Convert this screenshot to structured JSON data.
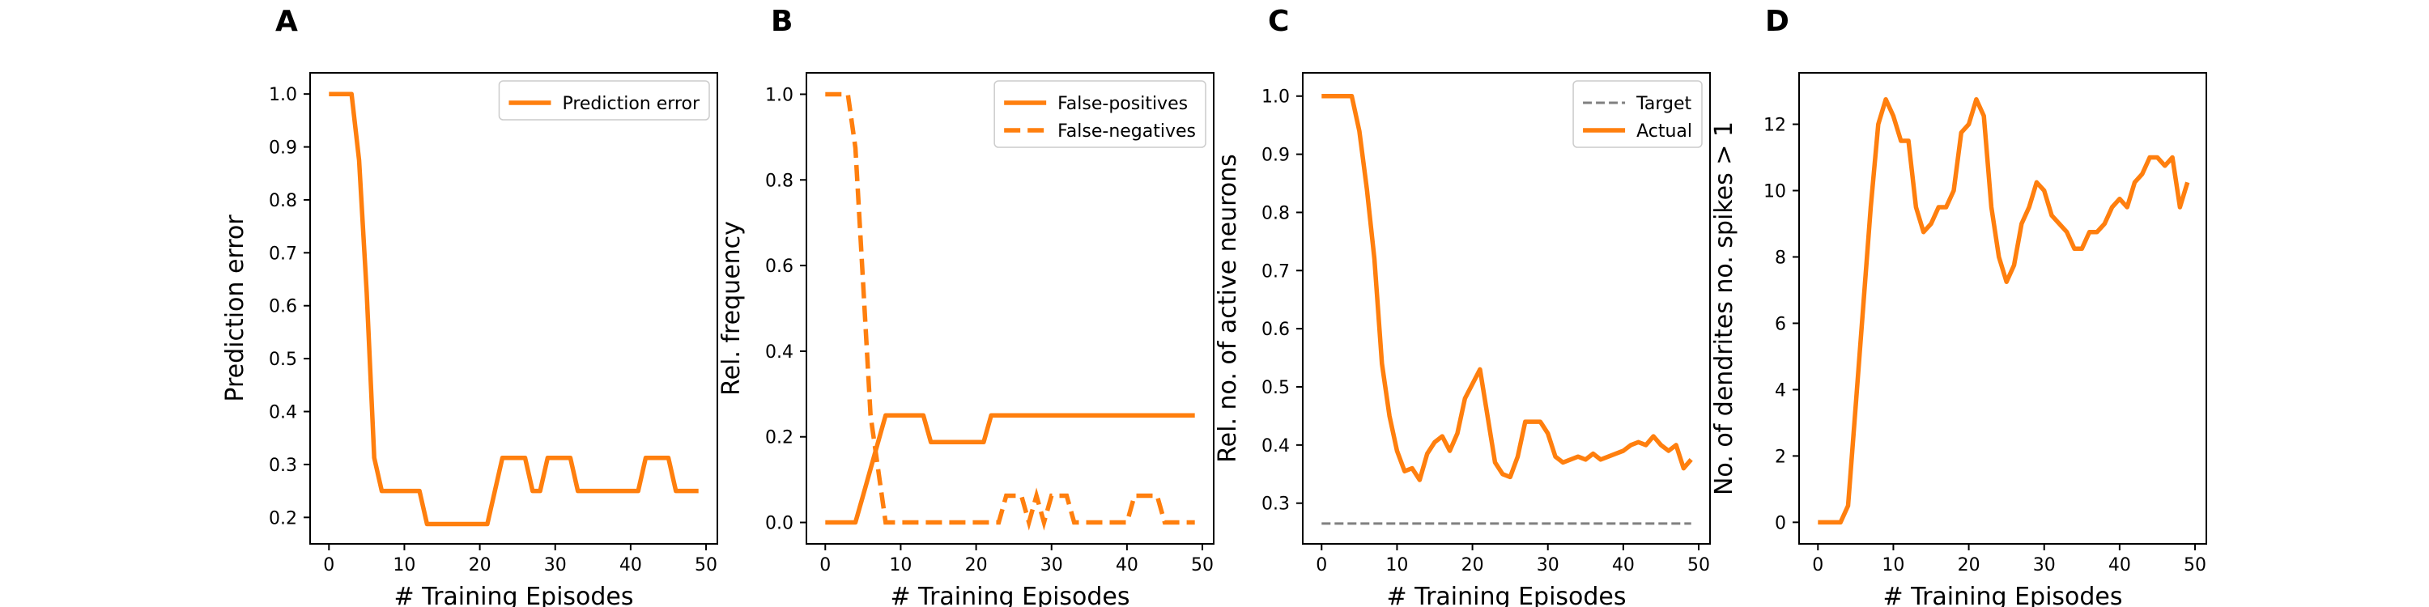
{
  "colors": {
    "orange": "#ff7f0e",
    "gray": "#808080"
  },
  "chart_data": [
    {
      "type": "line",
      "panel_label": "A",
      "xlabel": "# Training Episodes",
      "ylabel": "Prediction error",
      "xlim": [
        -2.5,
        51.5
      ],
      "ylim": [
        0.15,
        1.04
      ],
      "xticks": [
        0,
        10,
        20,
        30,
        40,
        50
      ],
      "yticks": [
        0.2,
        0.3,
        0.4,
        0.5,
        0.6,
        0.7,
        0.8,
        0.9,
        1.0
      ],
      "tick_decimals": 1,
      "legend": {
        "loc": "upper right",
        "entries": [
          {
            "name": "Prediction error",
            "style": "solid",
            "color": "#ff7f0e"
          }
        ]
      },
      "series": [
        {
          "name": "Prediction error",
          "style": "solid",
          "color": "#ff7f0e",
          "x": [
            0,
            1,
            2,
            3,
            4,
            5,
            6,
            7,
            8,
            9,
            10,
            11,
            12,
            13,
            14,
            15,
            16,
            17,
            18,
            19,
            20,
            21,
            22,
            23,
            24,
            25,
            26,
            27,
            28,
            29,
            30,
            31,
            32,
            33,
            34,
            35,
            36,
            37,
            38,
            39,
            40,
            41,
            42,
            43,
            44,
            45,
            46,
            47,
            48,
            49
          ],
          "y": [
            1.0,
            1.0,
            1.0,
            1.0,
            0.875,
            0.625,
            0.3125,
            0.25,
            0.25,
            0.25,
            0.25,
            0.25,
            0.25,
            0.1875,
            0.1875,
            0.1875,
            0.1875,
            0.1875,
            0.1875,
            0.1875,
            0.1875,
            0.1875,
            0.25,
            0.3125,
            0.3125,
            0.3125,
            0.3125,
            0.25,
            0.25,
            0.3125,
            0.3125,
            0.3125,
            0.3125,
            0.25,
            0.25,
            0.25,
            0.25,
            0.25,
            0.25,
            0.25,
            0.25,
            0.25,
            0.3125,
            0.3125,
            0.3125,
            0.3125,
            0.25,
            0.25,
            0.25,
            0.25
          ]
        }
      ]
    },
    {
      "type": "line",
      "panel_label": "B",
      "xlabel": "# Training Episodes",
      "ylabel": "Rel. frequency",
      "xlim": [
        -2.5,
        51.5
      ],
      "ylim": [
        -0.05,
        1.05
      ],
      "xticks": [
        0,
        10,
        20,
        30,
        40,
        50
      ],
      "yticks": [
        0.0,
        0.2,
        0.4,
        0.6,
        0.8,
        1.0
      ],
      "tick_decimals": 1,
      "legend": {
        "loc": "upper right",
        "entries": [
          {
            "name": "False-positives",
            "style": "solid",
            "color": "#ff7f0e"
          },
          {
            "name": "False-negatives",
            "style": "dashed",
            "color": "#ff7f0e"
          }
        ]
      },
      "series": [
        {
          "name": "False-positives",
          "style": "solid",
          "color": "#ff7f0e",
          "x": [
            0,
            1,
            2,
            3,
            4,
            5,
            6,
            7,
            8,
            9,
            10,
            11,
            12,
            13,
            14,
            15,
            16,
            17,
            18,
            19,
            20,
            21,
            22,
            23,
            24,
            25,
            26,
            27,
            28,
            29,
            30,
            31,
            32,
            33,
            34,
            35,
            36,
            37,
            38,
            39,
            40,
            41,
            42,
            43,
            44,
            45,
            46,
            47,
            48,
            49
          ],
          "y": [
            0,
            0,
            0,
            0,
            0,
            0.0625,
            0.125,
            0.1875,
            0.25,
            0.25,
            0.25,
            0.25,
            0.25,
            0.25,
            0.1875,
            0.1875,
            0.1875,
            0.1875,
            0.1875,
            0.1875,
            0.1875,
            0.1875,
            0.25,
            0.25,
            0.25,
            0.25,
            0.25,
            0.25,
            0.25,
            0.25,
            0.25,
            0.25,
            0.25,
            0.25,
            0.25,
            0.25,
            0.25,
            0.25,
            0.25,
            0.25,
            0.25,
            0.25,
            0.25,
            0.25,
            0.25,
            0.25,
            0.25,
            0.25,
            0.25,
            0.25
          ]
        },
        {
          "name": "False-negatives",
          "style": "dashed",
          "color": "#ff7f0e",
          "x": [
            0,
            1,
            2,
            3,
            4,
            5,
            6,
            7,
            8,
            9,
            10,
            11,
            12,
            13,
            14,
            15,
            16,
            17,
            18,
            19,
            20,
            21,
            22,
            23,
            24,
            25,
            26,
            27,
            28,
            29,
            30,
            31,
            32,
            33,
            34,
            35,
            36,
            37,
            38,
            39,
            40,
            41,
            42,
            43,
            44,
            45,
            46,
            47,
            48,
            49
          ],
          "y": [
            1.0,
            1.0,
            1.0,
            1.0,
            0.875,
            0.5625,
            0.25,
            0.125,
            0,
            0,
            0,
            0,
            0,
            0,
            0,
            0,
            0,
            0,
            0,
            0,
            0,
            0,
            0,
            0,
            0.0625,
            0.0625,
            0.0625,
            0,
            0.0625,
            0,
            0.0625,
            0.0625,
            0.0625,
            0,
            0,
            0,
            0,
            0,
            0,
            0,
            0,
            0.0625,
            0.0625,
            0.0625,
            0.0625,
            0,
            0,
            0,
            0,
            0
          ]
        }
      ]
    },
    {
      "type": "line",
      "panel_label": "C",
      "xlabel": "# Training Episodes",
      "ylabel": "Rel. no. of active neurons",
      "xlim": [
        -2.5,
        51.5
      ],
      "ylim": [
        0.23,
        1.04
      ],
      "xticks": [
        0,
        10,
        20,
        30,
        40,
        50
      ],
      "yticks": [
        0.3,
        0.4,
        0.5,
        0.6,
        0.7,
        0.8,
        0.9,
        1.0
      ],
      "tick_decimals": 1,
      "legend": {
        "loc": "upper right",
        "entries": [
          {
            "name": "Target",
            "style": "dashed-thin",
            "color": "#808080"
          },
          {
            "name": "Actual",
            "style": "solid",
            "color": "#ff7f0e"
          }
        ]
      },
      "series": [
        {
          "name": "Target",
          "style": "dashed-thin",
          "color": "#808080",
          "x": [
            0,
            49
          ],
          "y": [
            0.265,
            0.265
          ]
        },
        {
          "name": "Actual",
          "style": "solid",
          "color": "#ff7f0e",
          "x": [
            0,
            1,
            2,
            3,
            4,
            5,
            6,
            7,
            8,
            9,
            10,
            11,
            12,
            13,
            14,
            15,
            16,
            17,
            18,
            19,
            20,
            21,
            22,
            23,
            24,
            25,
            26,
            27,
            28,
            29,
            30,
            31,
            32,
            33,
            34,
            35,
            36,
            37,
            38,
            39,
            40,
            41,
            42,
            43,
            44,
            45,
            46,
            47,
            48,
            49
          ],
          "y": [
            1.0,
            1.0,
            1.0,
            1.0,
            1.0,
            0.94,
            0.84,
            0.72,
            0.54,
            0.45,
            0.39,
            0.355,
            0.36,
            0.34,
            0.385,
            0.405,
            0.415,
            0.39,
            0.42,
            0.48,
            0.505,
            0.53,
            0.45,
            0.37,
            0.35,
            0.345,
            0.38,
            0.44,
            0.44,
            0.44,
            0.42,
            0.38,
            0.37,
            0.375,
            0.38,
            0.375,
            0.385,
            0.375,
            0.38,
            0.385,
            0.39,
            0.4,
            0.405,
            0.4,
            0.415,
            0.4,
            0.39,
            0.4,
            0.36,
            0.375
          ]
        }
      ]
    },
    {
      "type": "line",
      "panel_label": "D",
      "xlabel": "# Training Episodes",
      "ylabel": "No. of dendrites no. spikes > 1",
      "xlim": [
        -2.5,
        51.5
      ],
      "ylim": [
        -0.65,
        13.55
      ],
      "xticks": [
        0,
        10,
        20,
        30,
        40,
        50
      ],
      "yticks": [
        0,
        2,
        4,
        6,
        8,
        10,
        12
      ],
      "tick_decimals": 0,
      "legend": null,
      "series": [
        {
          "name": "",
          "style": "solid",
          "color": "#ff7f0e",
          "x": [
            0,
            1,
            2,
            3,
            4,
            5,
            6,
            7,
            8,
            9,
            10,
            11,
            12,
            13,
            14,
            15,
            16,
            17,
            18,
            19,
            20,
            21,
            22,
            23,
            24,
            25,
            26,
            27,
            28,
            29,
            30,
            31,
            32,
            33,
            34,
            35,
            36,
            37,
            38,
            39,
            40,
            41,
            42,
            43,
            44,
            45,
            46,
            47,
            48,
            49
          ],
          "y": [
            0,
            0,
            0,
            0,
            0.5,
            3.5,
            6.5,
            9.5,
            12,
            12.75,
            12.25,
            11.5,
            11.5,
            9.5,
            8.75,
            9,
            9.5,
            9.5,
            10,
            11.75,
            12,
            12.75,
            12.25,
            9.5,
            8,
            7.25,
            7.75,
            9,
            9.5,
            10.25,
            10,
            9.25,
            9,
            8.75,
            8.25,
            8.25,
            8.75,
            8.75,
            9,
            9.5,
            9.75,
            9.5,
            10.25,
            10.5,
            11,
            11,
            10.75,
            11,
            9.5,
            10.25
          ]
        }
      ]
    }
  ]
}
